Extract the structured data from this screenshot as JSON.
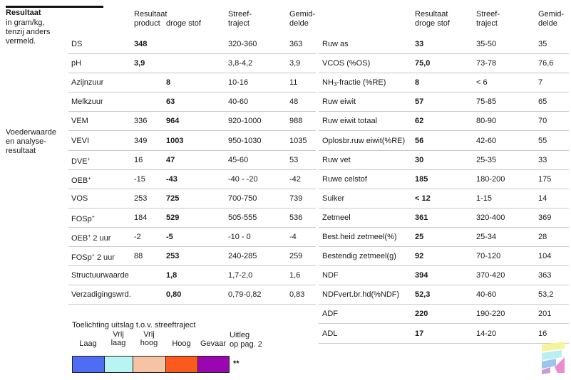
{
  "heading": {
    "title": "Resultaat",
    "subtitle_lines": [
      "in gram/kg,",
      "tenzij anders",
      "vermeld."
    ]
  },
  "section2_lines": [
    "Voederwaarde",
    "en analyse-",
    "resultaat"
  ],
  "left_headers": {
    "product": "Resultaat",
    "product2": "product",
    "droge": "droge stof",
    "streef": "Streef-",
    "streef2": "traject",
    "gemid": "Gemid-",
    "gemid2": "delde"
  },
  "right_headers": {
    "res": "Resultaat",
    "res2": "droge stof",
    "streef": "Streef-",
    "streef2": "traject",
    "gemid": "Gemid-",
    "gemid2": "delde"
  },
  "left_rows": [
    {
      "name": "DS",
      "product": "348",
      "dry": "",
      "range": "320-360",
      "avg": "363"
    },
    {
      "name": "pH",
      "product": "3,9",
      "dry": "",
      "range": "3,8-4,2",
      "avg": "3,9"
    },
    {
      "name": "Azijnzuur",
      "product": "",
      "dry": "8",
      "range": "10-16",
      "avg": "11"
    },
    {
      "name": "Melkzuur",
      "product": "",
      "dry": "63",
      "range": "40-60",
      "avg": "48"
    },
    {
      "name": "VEM",
      "product": "336",
      "dry": "964",
      "range": "920-1000",
      "avg": "988"
    },
    {
      "name": "VEVI",
      "product": "349",
      "dry": "1003",
      "range": "950-1030",
      "avg": "1035"
    },
    {
      "name": "DVE",
      "sup": "+",
      "product": "16",
      "dry": "47",
      "range": "45-60",
      "avg": "53"
    },
    {
      "name": "OEB",
      "sup": "+",
      "product": "-15",
      "dry": "-43",
      "range": "-40 - -20",
      "avg": "-42"
    },
    {
      "name": "VOS",
      "product": "253",
      "dry": "725",
      "range": "700-750",
      "avg": "739"
    },
    {
      "name": "FOSp",
      "sup": "+",
      "product": "184",
      "dry": "529",
      "range": "505-555",
      "avg": "536"
    },
    {
      "name": "OEB",
      "sup": "+",
      "suffix": " 2 uur",
      "product": "-2",
      "dry": "-5",
      "range": "-10 - 0",
      "avg": "-4"
    },
    {
      "name": "FOSp",
      "sup": "+",
      "suffix": " 2 uur",
      "product": "88",
      "dry": "253",
      "range": "240-285",
      "avg": "259"
    },
    {
      "name": "Structuurwaarde",
      "product": "",
      "dry": "1,8",
      "range": "1,7-2,0",
      "avg": "1,6"
    },
    {
      "name": "Verzadigingswrd.",
      "product": "",
      "dry": "0,80",
      "range": "0,79-0,82",
      "avg": "0,83"
    }
  ],
  "right_rows": [
    {
      "name": "Ruw as",
      "dry": "33",
      "range": "35-50",
      "avg": "35"
    },
    {
      "name": "VCOS (%OS)",
      "dry": "75,0",
      "range": "73-78",
      "avg": "76,6"
    },
    {
      "name": "NH",
      "sub": "3",
      "suffix": "-fractie (%RE)",
      "dry": "8",
      "range": "< 6",
      "avg": "7"
    },
    {
      "name": "Ruw eiwit",
      "dry": "57",
      "range": "75-85",
      "avg": "65"
    },
    {
      "name": "Ruw eiwit totaal",
      "dry": "62",
      "range": "80-90",
      "avg": "70"
    },
    {
      "name": "Oplosbr.ruw eiwit(%RE)",
      "dry": "56",
      "range": "42-60",
      "avg": "55"
    },
    {
      "name": "Ruw vet",
      "dry": "30",
      "range": "25-35",
      "avg": "33"
    },
    {
      "name": "Ruwe celstof",
      "dry": "185",
      "range": "180-200",
      "avg": "175"
    },
    {
      "name": "Suiker",
      "dry": "< 12",
      "range": "1-15",
      "avg": "14"
    },
    {
      "name": "Zetmeel",
      "dry": "361",
      "range": "320-400",
      "avg": "369"
    },
    {
      "name": "Best.heid zetmeel(%)",
      "dry": "25",
      "range": "25-34",
      "avg": "28"
    },
    {
      "name": "Bestendig zetmeel(g)",
      "dry": "92",
      "range": "70-120",
      "avg": "104"
    },
    {
      "name": "NDF",
      "dry": "394",
      "range": "370-420",
      "avg": "363"
    },
    {
      "name": "NDFvert.br.hd(%NDF)",
      "dry": "52,3",
      "range": "40-60",
      "avg": "53,2"
    },
    {
      "name": "ADF",
      "dry": "220",
      "range": "190-220",
      "avg": "201"
    },
    {
      "name": "ADL",
      "dry": "17",
      "range": "14-20",
      "avg": "16"
    }
  ],
  "legend": {
    "title": "Toelichting uitslag t.o.v. streeftraject",
    "items": [
      {
        "label": "Laag",
        "color": "#4f6cf5"
      },
      {
        "label": "Vrij\nlaag",
        "color": "#b8f4f4"
      },
      {
        "label": "Vrij\nhoog",
        "color": "#f6c3a4"
      },
      {
        "label": "Hoog",
        "color": "#fb5a1e"
      },
      {
        "label": "Gevaar",
        "color": "#9a07b0"
      }
    ],
    "uitleg": "Uitleg\nop pag. 2",
    "stars": "**"
  }
}
